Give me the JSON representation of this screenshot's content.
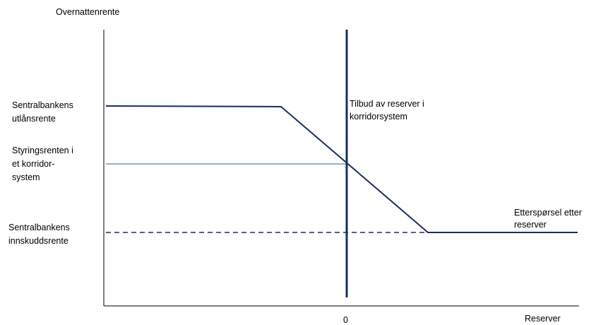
{
  "axes": {
    "y_label": "Overnattenrente",
    "x_label": "Reserver",
    "x_tick": "0"
  },
  "labels": {
    "lending_rate": [
      "Sentralbankens",
      "utlånsrente"
    ],
    "policy_rate": [
      "Styringsrenten i",
      "et korridor-",
      "system"
    ],
    "deposit_rate": [
      "Sentralbankens",
      "innskuddsrente"
    ],
    "supply": [
      "Tilbud av reserver i",
      "korridorsystem"
    ],
    "demand": [
      "Etterspørsel etter",
      "reserver"
    ]
  },
  "colors": {
    "curve": "#1a2e5c",
    "axis": "#000000",
    "policy_line": "#3b5f8a",
    "text": "#000000"
  }
}
